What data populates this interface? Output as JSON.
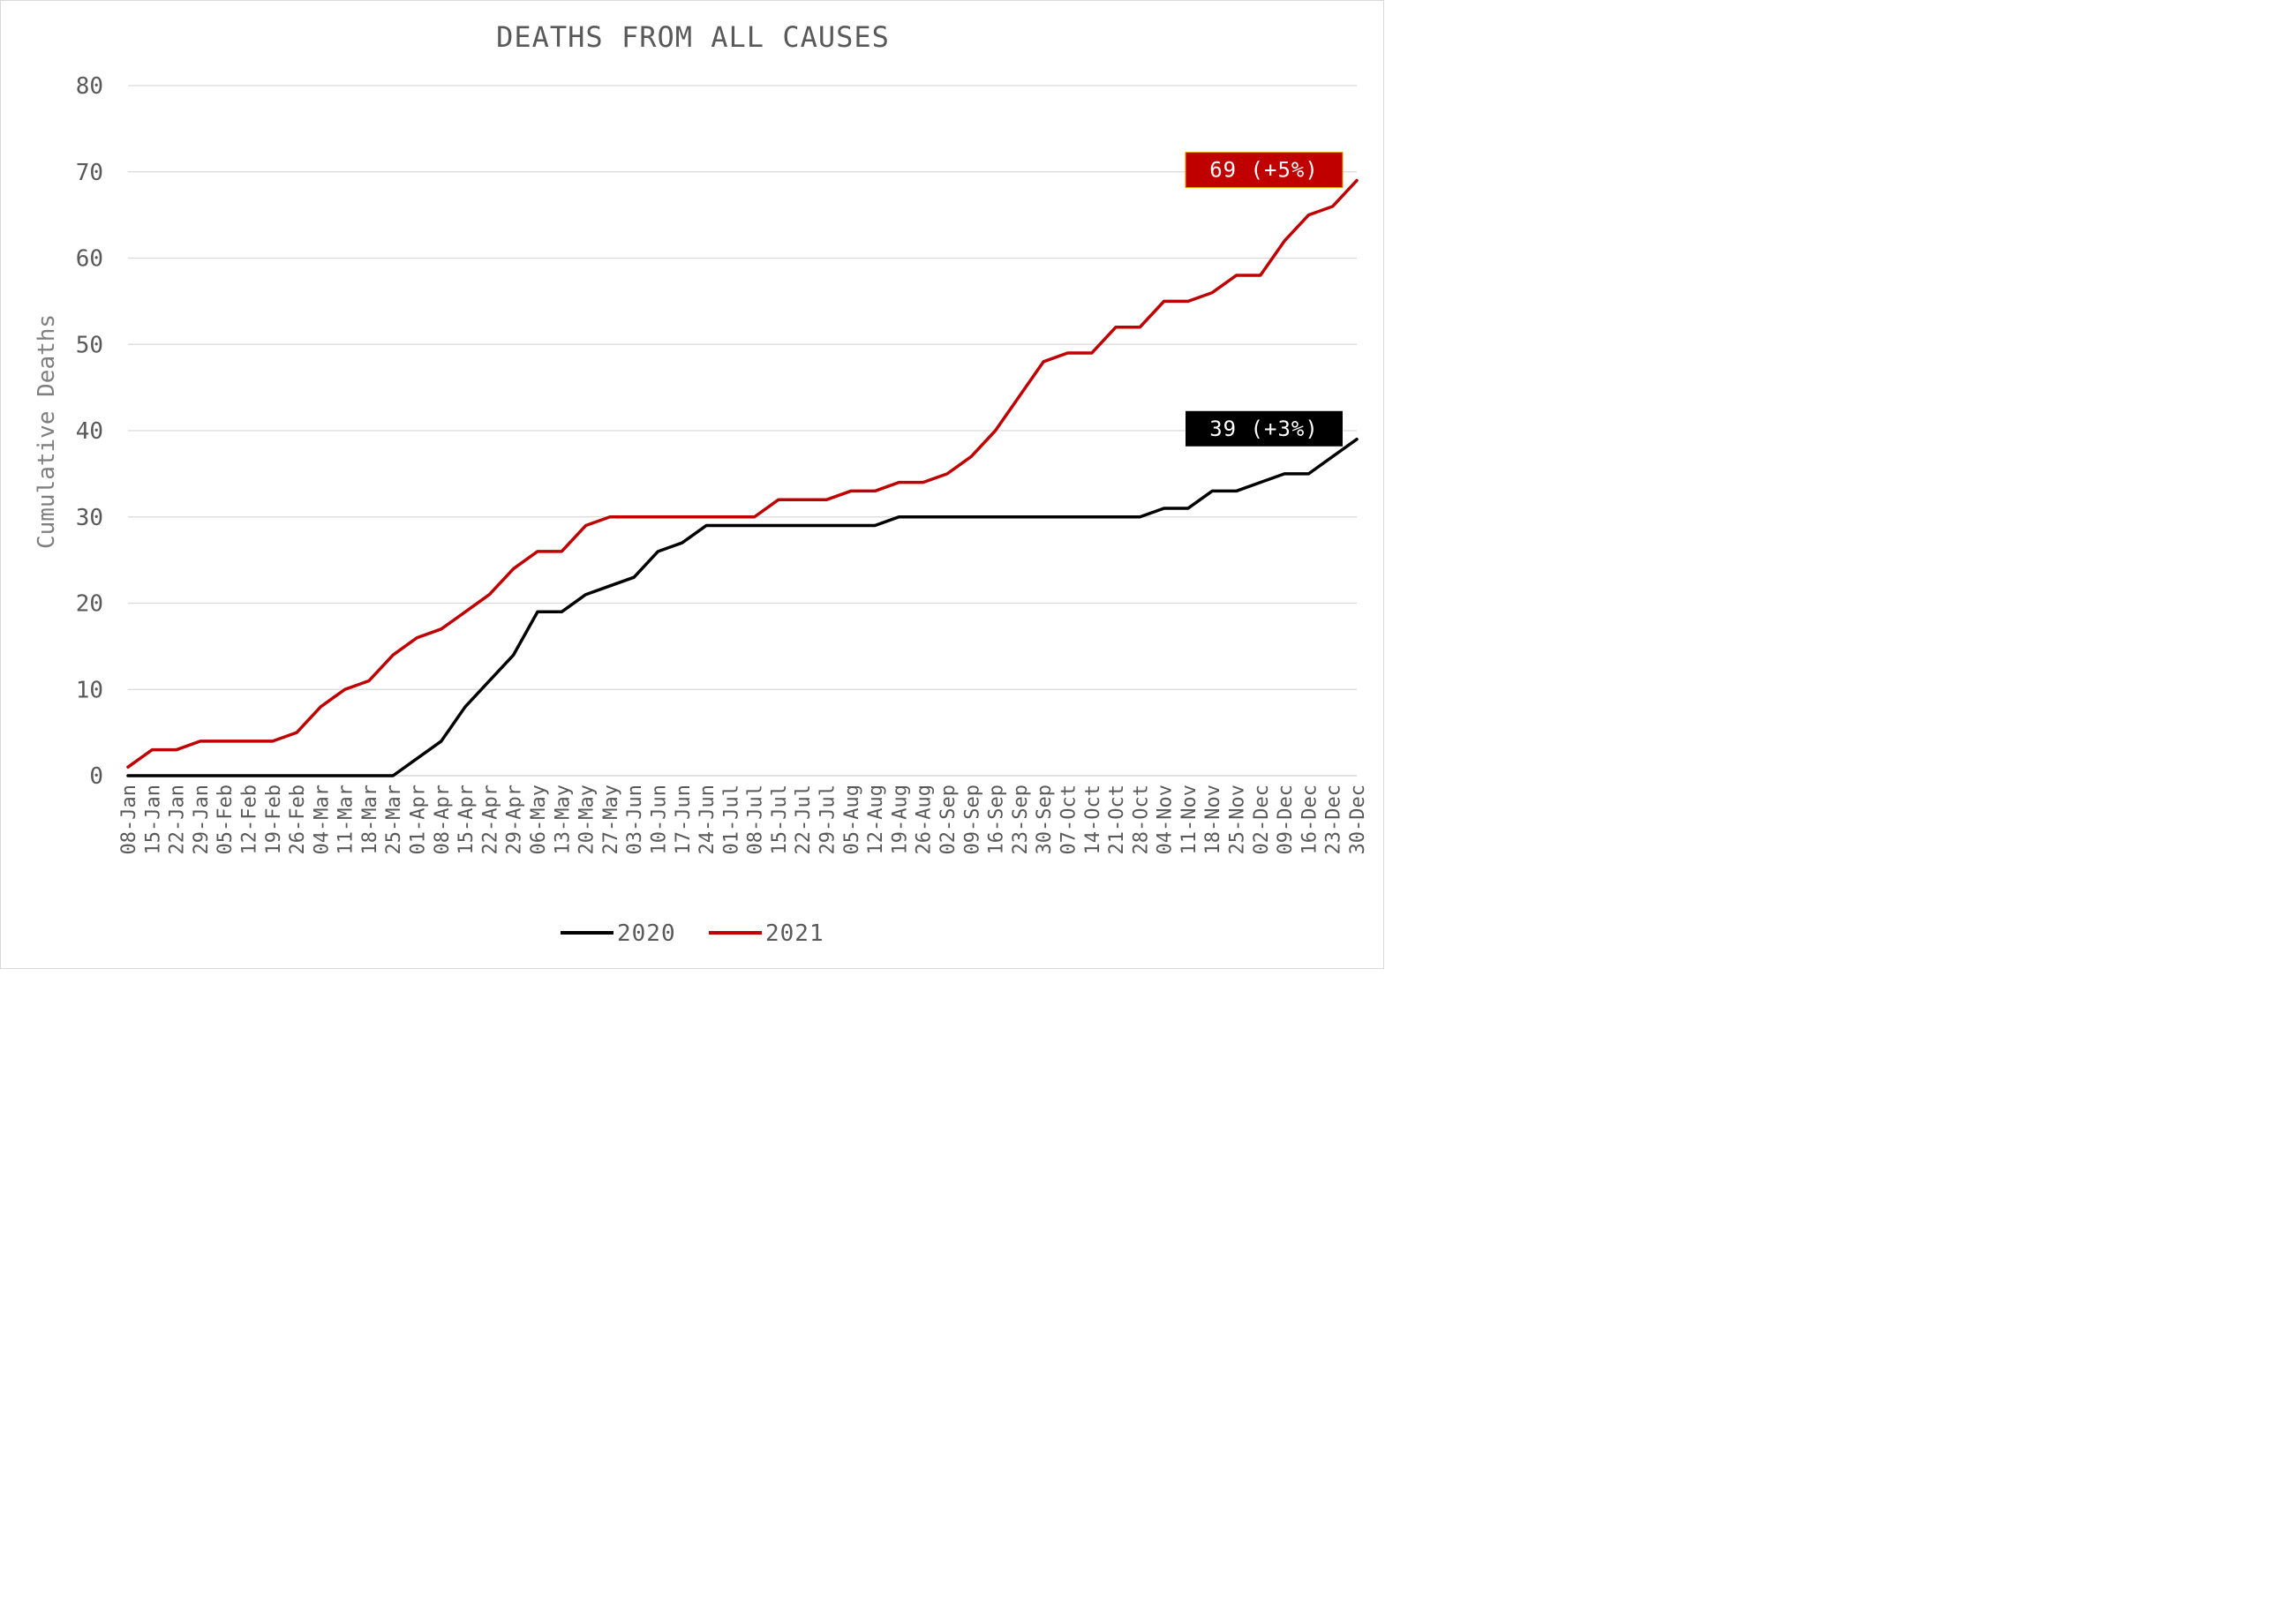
{
  "chart_data": {
    "type": "line",
    "title": "DEATHS FROM ALL CAUSES",
    "xlabel": "",
    "ylabel": "Cumulative Deaths",
    "ylim": [
      0,
      80
    ],
    "yticks": [
      0,
      10,
      20,
      30,
      40,
      50,
      60,
      70,
      80
    ],
    "grid": true,
    "legend_position": "bottom",
    "categories": [
      "08-Jan",
      "15-Jan",
      "22-Jan",
      "29-Jan",
      "05-Feb",
      "12-Feb",
      "19-Feb",
      "26-Feb",
      "04-Mar",
      "11-Mar",
      "18-Mar",
      "25-Mar",
      "01-Apr",
      "08-Apr",
      "15-Apr",
      "22-Apr",
      "29-Apr",
      "06-May",
      "13-May",
      "20-May",
      "27-May",
      "03-Jun",
      "10-Jun",
      "17-Jun",
      "24-Jun",
      "01-Jul",
      "08-Jul",
      "15-Jul",
      "22-Jul",
      "29-Jul",
      "05-Aug",
      "12-Aug",
      "19-Aug",
      "26-Aug",
      "02-Sep",
      "09-Sep",
      "16-Sep",
      "23-Sep",
      "30-Sep",
      "07-Oct",
      "14-Oct",
      "21-Oct",
      "28-Oct",
      "04-Nov",
      "11-Nov",
      "18-Nov",
      "25-Nov",
      "02-Dec",
      "09-Dec",
      "16-Dec",
      "23-Dec",
      "30-Dec"
    ],
    "series": [
      {
        "name": "2020",
        "color": "#000000",
        "values": [
          0,
          0,
          0,
          0,
          0,
          0,
          0,
          0,
          0,
          0,
          0,
          0,
          2,
          4,
          8,
          11,
          14,
          19,
          19,
          21,
          22,
          23,
          26,
          27,
          29,
          29,
          29,
          29,
          29,
          29,
          29,
          29,
          30,
          30,
          30,
          30,
          30,
          30,
          30,
          30,
          30,
          30,
          30,
          31,
          31,
          33,
          33,
          34,
          35,
          35,
          37,
          39
        ],
        "callout": "39 (+3%)"
      },
      {
        "name": "2021",
        "color": "#c00000",
        "values": [
          1,
          3,
          3,
          4,
          4,
          4,
          4,
          5,
          8,
          10,
          11,
          14,
          16,
          17,
          19,
          21,
          24,
          26,
          26,
          29,
          30,
          30,
          30,
          30,
          30,
          30,
          30,
          32,
          32,
          32,
          33,
          33,
          34,
          34,
          35,
          37,
          40,
          44,
          48,
          49,
          49,
          52,
          52,
          55,
          55,
          56,
          58,
          58,
          62,
          65,
          66,
          69
        ],
        "callout": "69 (+5%)"
      }
    ]
  }
}
